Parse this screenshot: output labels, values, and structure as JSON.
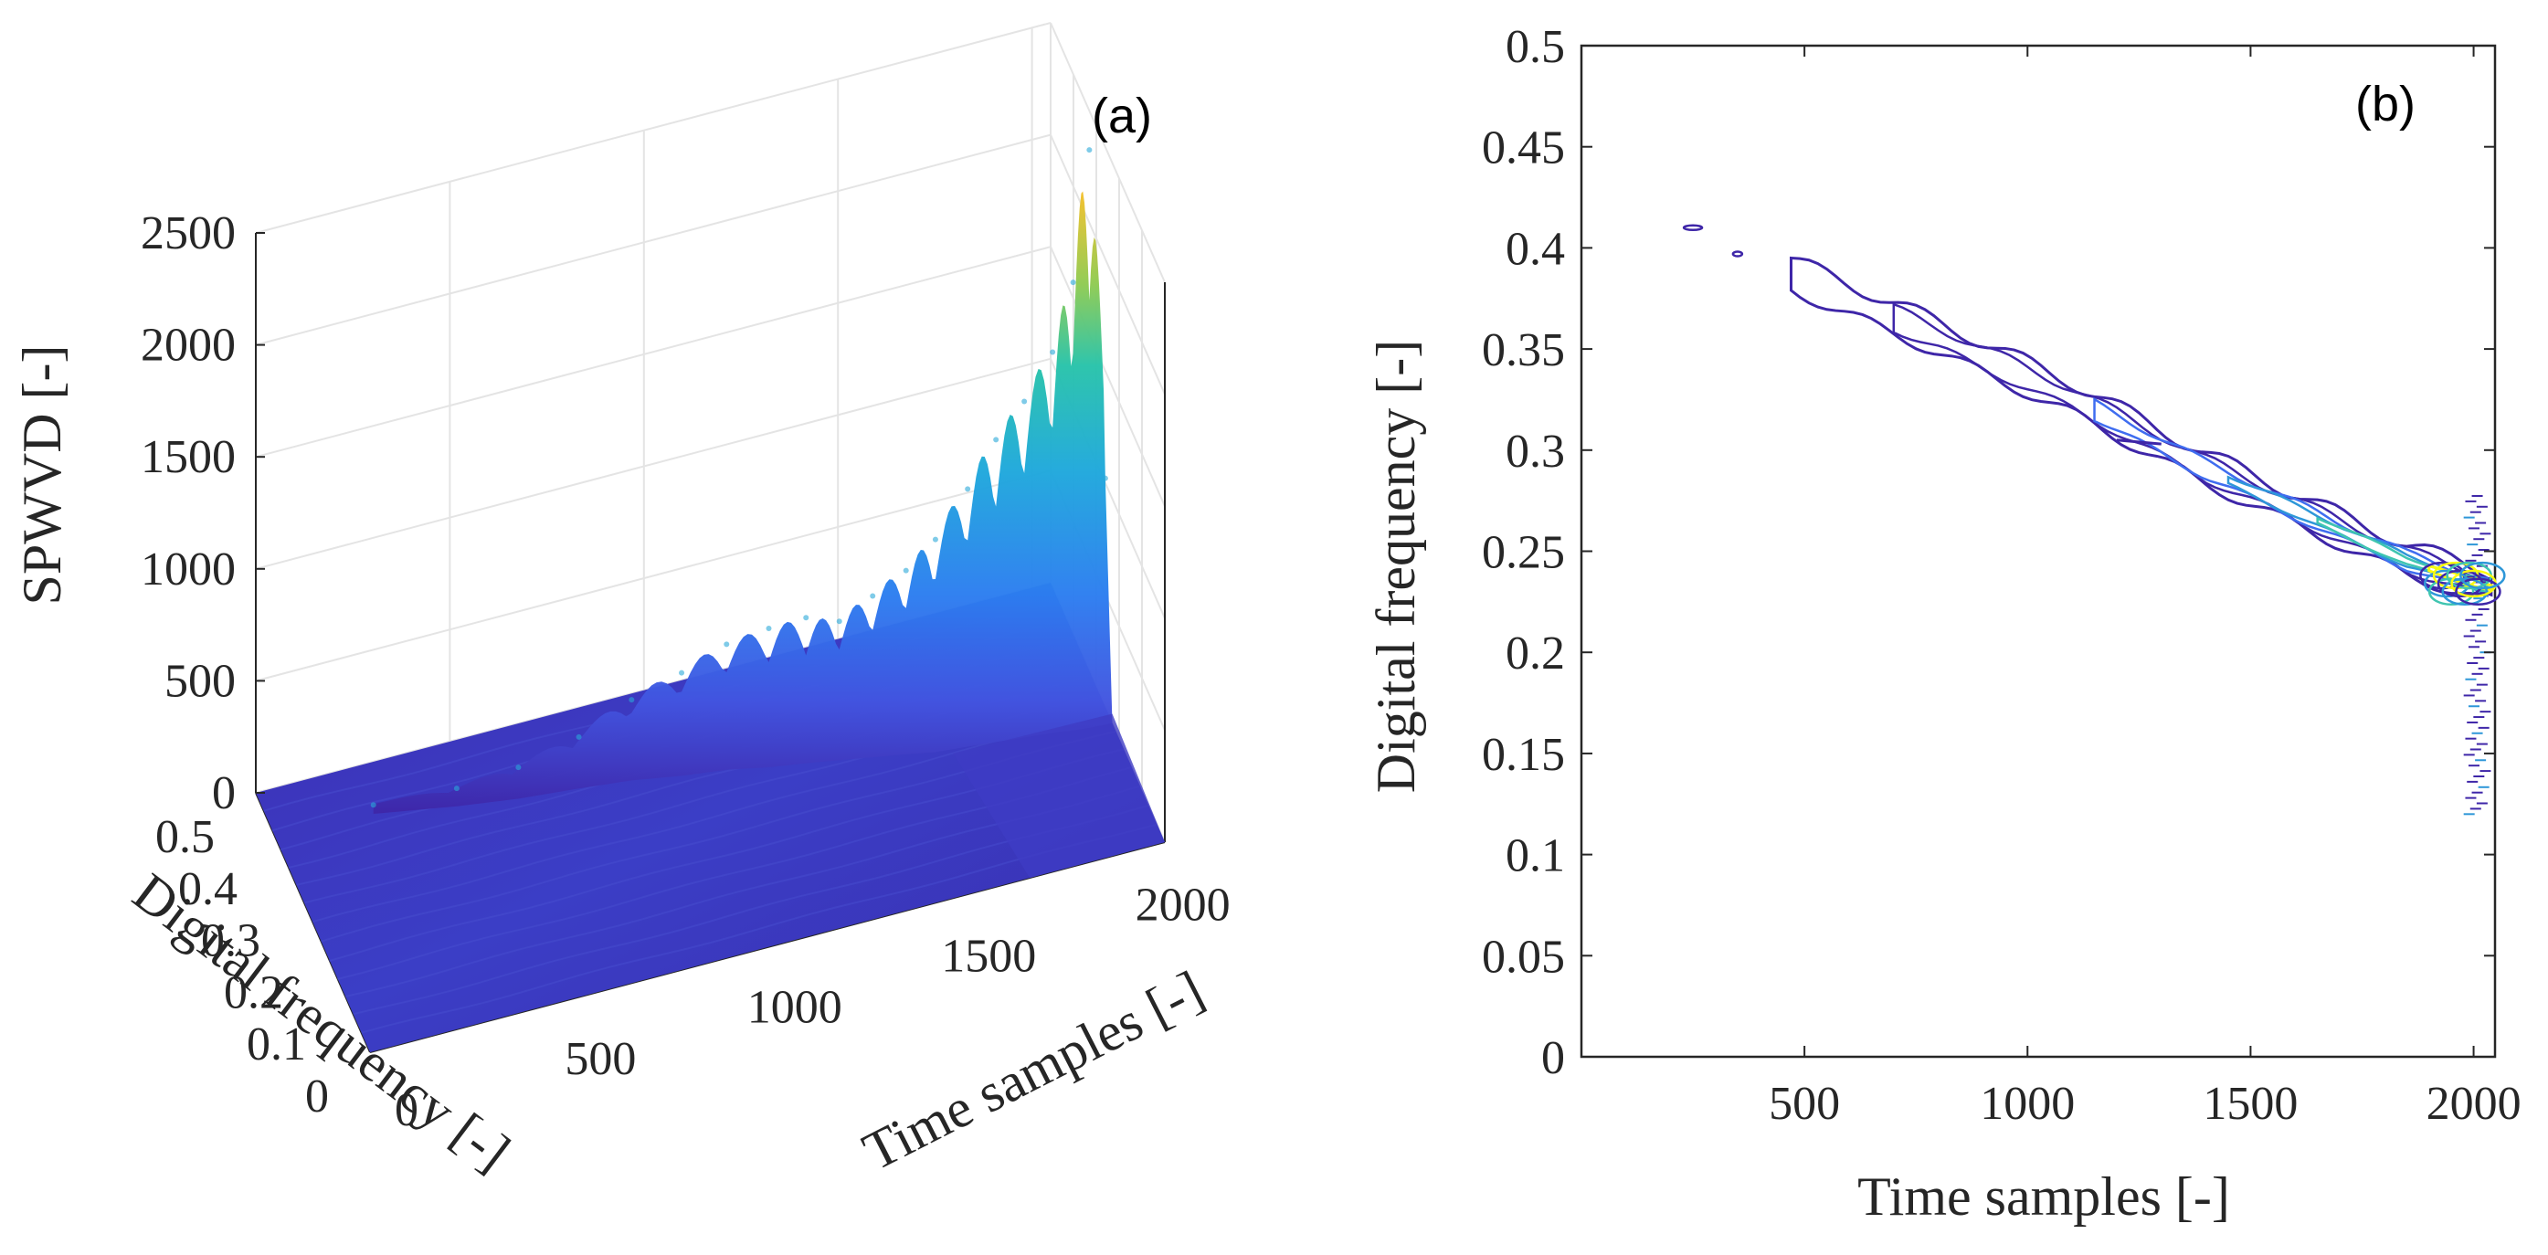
{
  "chart_data": [
    {
      "panel": "(a)",
      "type": "surface",
      "title": "",
      "panel_label": "(a)",
      "zlabel": "SPWVD [-]",
      "xlabel": "Time samples [-]",
      "ylabel": "Digital frequency [-]",
      "zlim": [
        0,
        2500
      ],
      "xlim": [
        0,
        2048
      ],
      "ylim": [
        0,
        0.5
      ],
      "z_ticks": [
        "0",
        "500",
        "1000",
        "1500",
        "2000",
        "2500"
      ],
      "x_ticks": [
        "0",
        "500",
        "1000",
        "1500",
        "2000"
      ],
      "y_ticks": [
        "0",
        "0.1",
        "0.2",
        "0.3",
        "0.4",
        "0.5"
      ],
      "x_tick_values": [
        0,
        500,
        1000,
        1500,
        2000
      ],
      "y_tick_values": [
        0,
        0.1,
        0.2,
        0.3,
        0.4,
        0.5
      ],
      "z_tick_values": [
        0,
        500,
        1000,
        1500,
        2000,
        2500
      ],
      "grid": true,
      "colormap": "parula",
      "ridge_peaks": [
        {
          "t": 250,
          "f": 0.41,
          "z": 40
        },
        {
          "t": 450,
          "f": 0.385,
          "z": 80
        },
        {
          "t": 600,
          "f": 0.37,
          "z": 140
        },
        {
          "t": 750,
          "f": 0.36,
          "z": 230
        },
        {
          "t": 880,
          "f": 0.35,
          "z": 360
        },
        {
          "t": 1000,
          "f": 0.335,
          "z": 460
        },
        {
          "t": 1110,
          "f": 0.325,
          "z": 560
        },
        {
          "t": 1210,
          "f": 0.31,
          "z": 620
        },
        {
          "t": 1300,
          "f": 0.3,
          "z": 650
        },
        {
          "t": 1380,
          "f": 0.29,
          "z": 620
        },
        {
          "t": 1460,
          "f": 0.28,
          "z": 720
        },
        {
          "t": 1540,
          "f": 0.27,
          "z": 820
        },
        {
          "t": 1610,
          "f": 0.26,
          "z": 950
        },
        {
          "t": 1690,
          "f": 0.255,
          "z": 1150
        },
        {
          "t": 1760,
          "f": 0.25,
          "z": 1350
        },
        {
          "t": 1830,
          "f": 0.245,
          "z": 1500
        },
        {
          "t": 1900,
          "f": 0.24,
          "z": 1700
        },
        {
          "t": 1950,
          "f": 0.235,
          "z": 2000
        },
        {
          "t": 1990,
          "f": 0.232,
          "z": 2580
        },
        {
          "t": 2030,
          "f": 0.23,
          "z": 1100
        }
      ]
    },
    {
      "panel": "(b)",
      "type": "contour",
      "title": "",
      "panel_label": "(b)",
      "xlabel": "Time samples [-]",
      "ylabel": "Digital frequency [-]",
      "xlim": [
        0,
        2048
      ],
      "ylim": [
        0,
        0.5
      ],
      "x_ticks": [
        "500",
        "1000",
        "1500",
        "2000"
      ],
      "y_ticks": [
        "0",
        "0.05",
        "0.1",
        "0.15",
        "0.2",
        "0.25",
        "0.3",
        "0.35",
        "0.4",
        "0.45",
        "0.5"
      ],
      "x_tick_values": [
        500,
        1000,
        1500,
        2000
      ],
      "y_tick_values": [
        0,
        0.05,
        0.1,
        0.15,
        0.2,
        0.25,
        0.3,
        0.35,
        0.4,
        0.45,
        0.5
      ],
      "grid": false,
      "colormap": "parula",
      "contour_ridge": [
        {
          "t": 250,
          "f": 0.41
        },
        {
          "t": 480,
          "f": 0.385
        },
        {
          "t": 800,
          "f": 0.355
        },
        {
          "t": 1100,
          "f": 0.325
        },
        {
          "t": 1400,
          "f": 0.29
        },
        {
          "t": 1650,
          "f": 0.265
        },
        {
          "t": 1850,
          "f": 0.245
        },
        {
          "t": 2030,
          "f": 0.232
        }
      ]
    }
  ],
  "colors": {
    "axis": "#262626",
    "grid": "#e4e4e4",
    "contour_outer": "#3e26a8",
    "contour_mid": "#2e97d8",
    "contour_inner": "#3fc5b0",
    "contour_peak": "#f9fb0e"
  }
}
